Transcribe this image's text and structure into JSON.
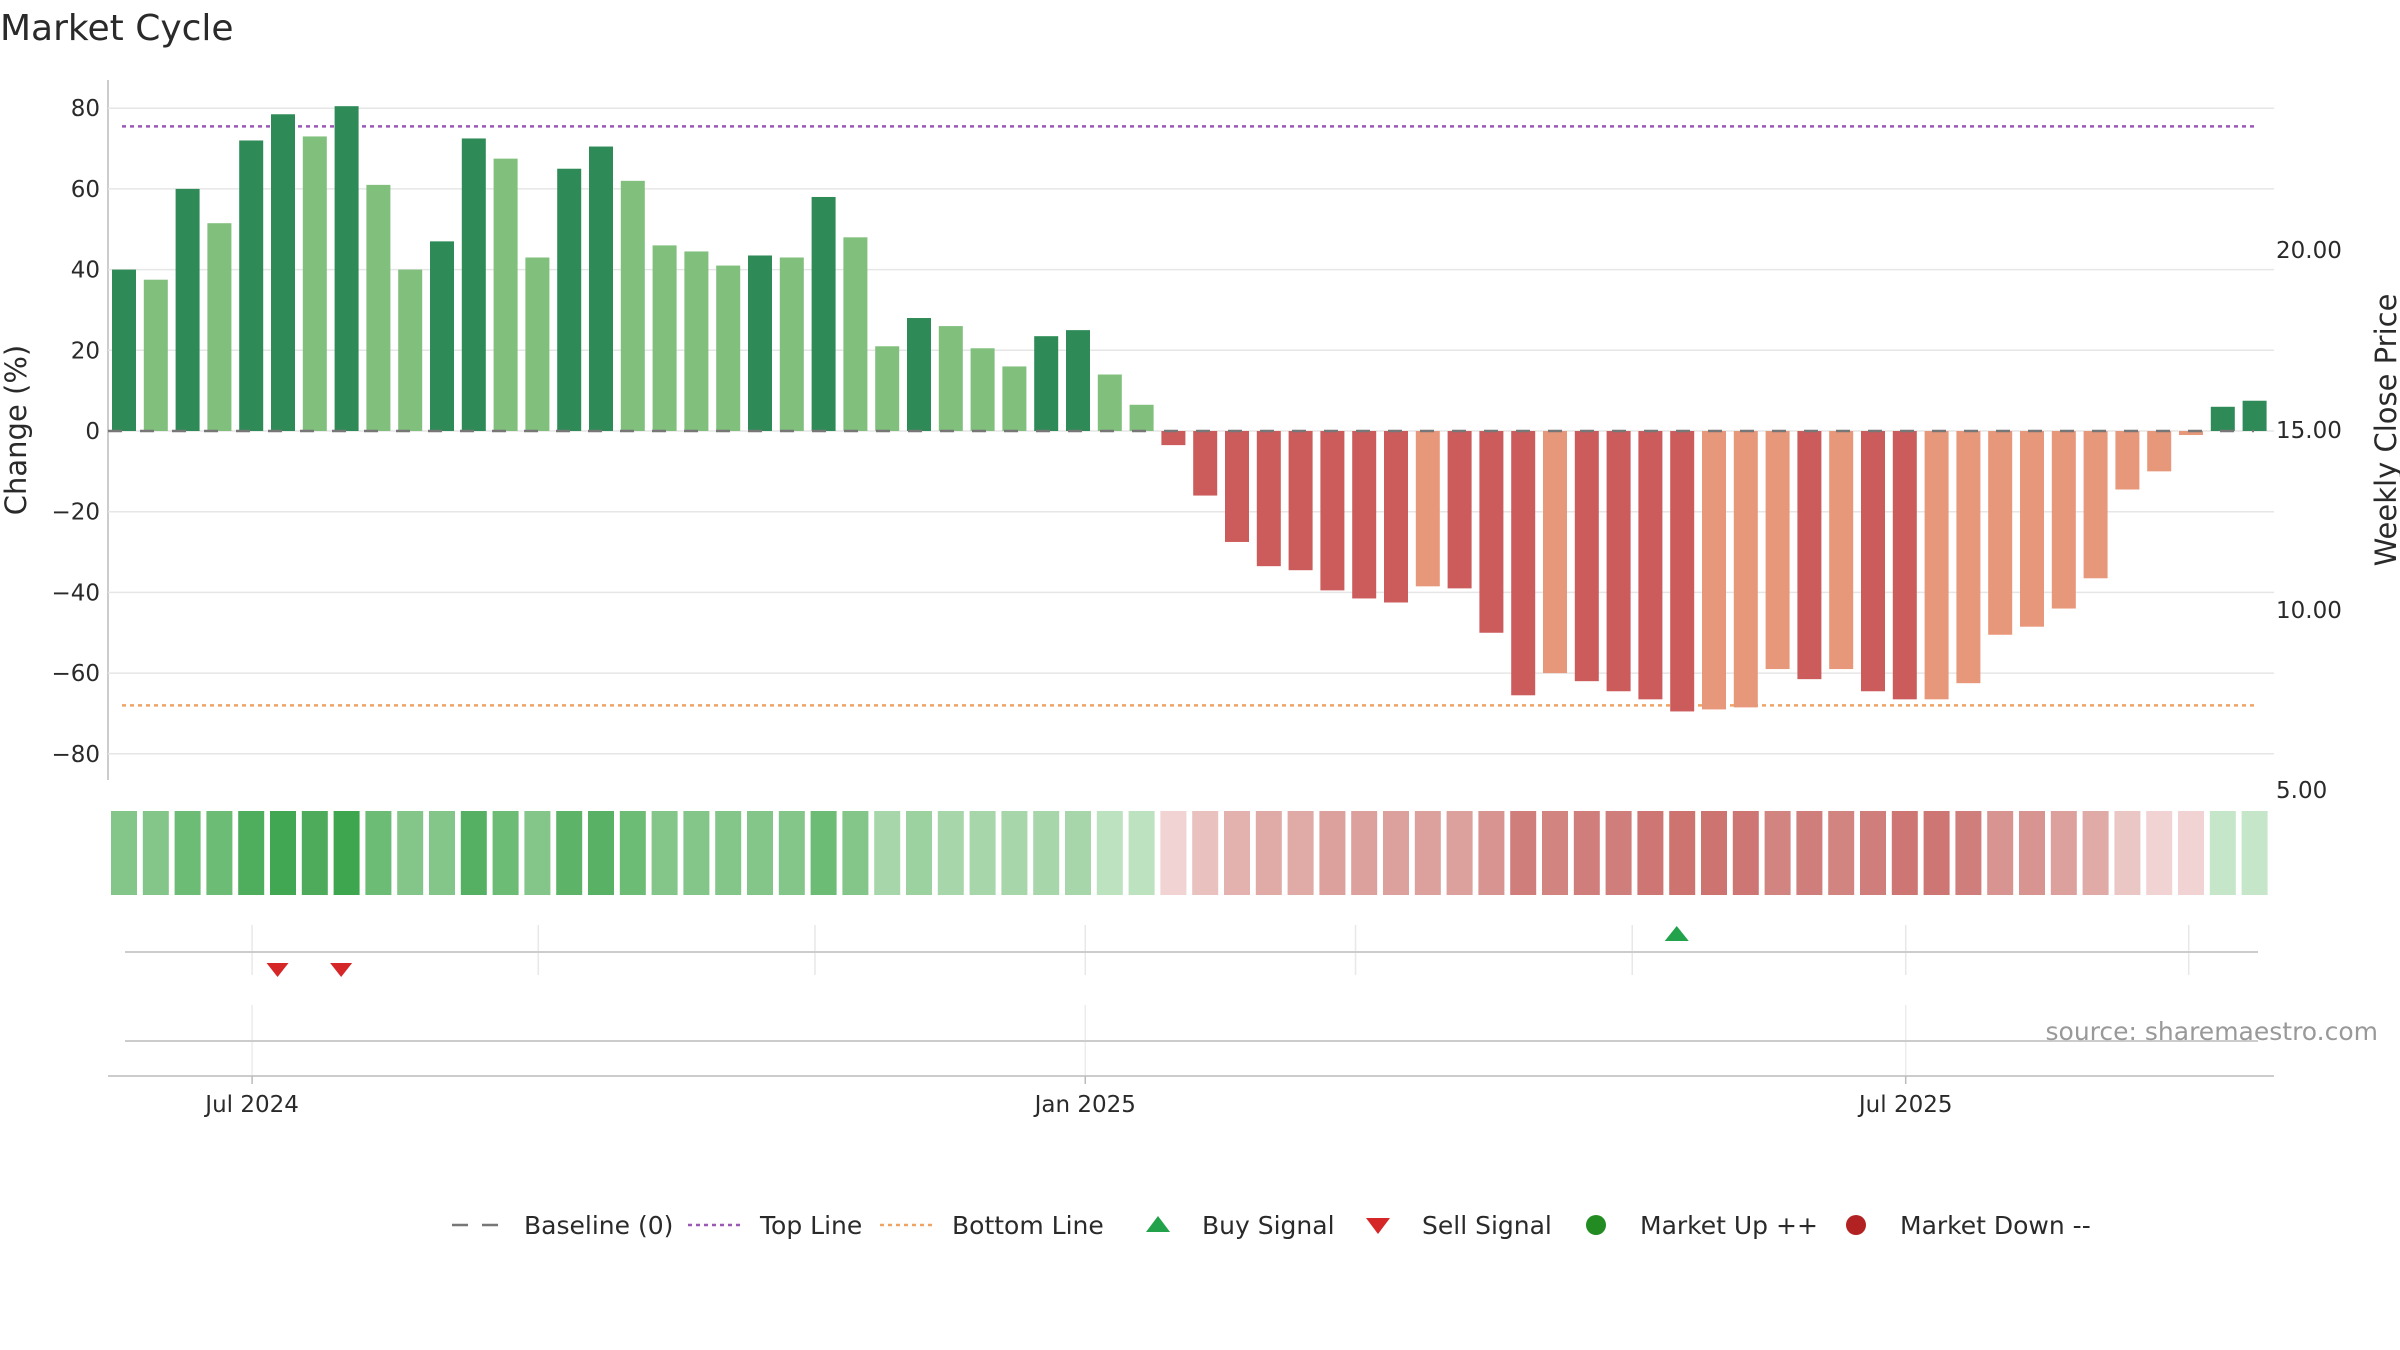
{
  "chart_data": {
    "type": "bar",
    "title": "Market Cycle",
    "ylabel": "Change (%)",
    "y2label": "Weekly Close Price",
    "ylim": [
      -87,
      87
    ],
    "y2lim": [
      3.2,
      21.7
    ],
    "yticks": [
      80,
      60,
      40,
      20,
      0,
      -20,
      -40,
      -60,
      -80
    ],
    "ytick_labels": [
      "80",
      "60",
      "40",
      "20",
      "0",
      "−20",
      "−40",
      "−60",
      "−80"
    ],
    "y2ticks": [
      20,
      15,
      10,
      5
    ],
    "y2tick_labels": [
      "20.00",
      "15.00",
      "10.00",
      "5.00"
    ],
    "xticks": [
      {
        "label": "Jul 2024",
        "week": 4.5
      },
      {
        "label": "Jan 2025",
        "week": 30.7
      },
      {
        "label": "Jul 2025",
        "week": 56.5
      }
    ],
    "top_line": 75.5,
    "bottom_line": -68,
    "baseline": 0,
    "values": [
      40,
      37.5,
      60,
      51.5,
      72,
      78.5,
      73,
      80.5,
      61,
      40,
      47,
      72.5,
      67.5,
      43,
      65,
      70.5,
      62,
      46,
      44.5,
      41,
      43.5,
      43,
      58,
      48,
      21,
      28,
      26,
      20.5,
      16,
      23.5,
      25,
      14,
      6.5,
      -3.5,
      -16,
      -27.5,
      -33.5,
      -34.5,
      -39.5,
      -41.5,
      -42.5,
      -38.5,
      -39,
      -50,
      -65.5,
      -60,
      -62,
      -64.5,
      -66.5,
      -69.5,
      -69,
      -68.5,
      -59,
      -61.5,
      -59,
      -64.5,
      -66.5,
      -66.5,
      -62.5,
      -50.5,
      -48.5,
      -44,
      -36.5,
      -14.5,
      -10,
      -1,
      6,
      7.5
    ],
    "bar_shades": [
      "dark",
      "light",
      "dark",
      "light",
      "dark",
      "dark",
      "light",
      "dark",
      "light",
      "light",
      "dark",
      "dark",
      "light",
      "light",
      "dark",
      "dark",
      "light",
      "light",
      "light",
      "light",
      "dark",
      "light",
      "dark",
      "light",
      "light",
      "dark",
      "light",
      "light",
      "light",
      "dark",
      "dark",
      "light",
      "light",
      "dark",
      "dark",
      "dark",
      "dark",
      "dark",
      "dark",
      "dark",
      "dark",
      "light",
      "dark",
      "dark",
      "dark",
      "light",
      "dark",
      "dark",
      "dark",
      "dark",
      "light",
      "light",
      "light",
      "dark",
      "light",
      "dark",
      "dark",
      "light",
      "light",
      "light",
      "light",
      "light",
      "light",
      "light",
      "light",
      "light",
      "dark",
      "dark"
    ],
    "heat_colors": [
      "#84c58a",
      "#84c58a",
      "#6cbc75",
      "#6cbc75",
      "#4fad5e",
      "#41a752",
      "#4dab5b",
      "#3fa650",
      "#6cbc75",
      "#84c58a",
      "#84c58a",
      "#55b063",
      "#6cbc75",
      "#84c58a",
      "#5db468",
      "#58b165",
      "#6cbc75",
      "#84c58a",
      "#84c58a",
      "#84c58a",
      "#84c58a",
      "#84c58a",
      "#6cbc75",
      "#84c58a",
      "#a6d6a9",
      "#9cd2a0",
      "#a6d6a9",
      "#a6d6a9",
      "#a6d6a9",
      "#a6d6a9",
      "#a6d6a9",
      "#bde2bf",
      "#bde2bf",
      "#f0d3d2",
      "#e9c1bf",
      "#e3b1ae",
      "#e0aaa7",
      "#e0aaa7",
      "#dca09d",
      "#dca09d",
      "#dca09d",
      "#dca09d",
      "#dca09d",
      "#d89491",
      "#d07e7b",
      "#d28481",
      "#d07e7b",
      "#d07e7b",
      "#cd7673",
      "#cd7471",
      "#cd7471",
      "#cd7673",
      "#d28481",
      "#d07e7b",
      "#d28481",
      "#d07e7b",
      "#cd7673",
      "#cd7673",
      "#d07e7b",
      "#d89491",
      "#d89491",
      "#dca09d",
      "#e0aaa7",
      "#eac7c5",
      "#f0d3d2",
      "#f0d3d2",
      "#c5e6c8",
      "#c5e6c8"
    ],
    "signals": [
      {
        "type": "sell",
        "week": 5.3
      },
      {
        "type": "sell",
        "week": 7.3
      },
      {
        "type": "buy",
        "week": 49.3
      }
    ],
    "colors": {
      "dark_green": "#2e8b57",
      "light_green": "#80bf7c",
      "dark_red": "#cc5c5c",
      "light_red": "#e8987a",
      "top_line": "#9b59b6",
      "bottom_line": "#eea464",
      "baseline": "#777777",
      "buy": "#22a24a",
      "sell": "#d62728",
      "market_up": "#228b22",
      "market_down": "#b22222"
    },
    "legend": [
      {
        "label": "Baseline (0)",
        "kind": "dash",
        "color": "#777777"
      },
      {
        "label": "Top Line",
        "kind": "dot",
        "color": "#9b59b6"
      },
      {
        "label": "Bottom Line",
        "kind": "dot",
        "color": "#eea464"
      },
      {
        "label": "Buy Signal",
        "kind": "up",
        "color": "#22a24a"
      },
      {
        "label": "Sell Signal",
        "kind": "down",
        "color": "#d62728"
      },
      {
        "label": "Market Up ++",
        "kind": "circle",
        "color": "#228b22"
      },
      {
        "label": "Market Down --",
        "kind": "circle",
        "color": "#b22222"
      }
    ],
    "source_text": "source: sharemaestro.com",
    "grid": true
  }
}
